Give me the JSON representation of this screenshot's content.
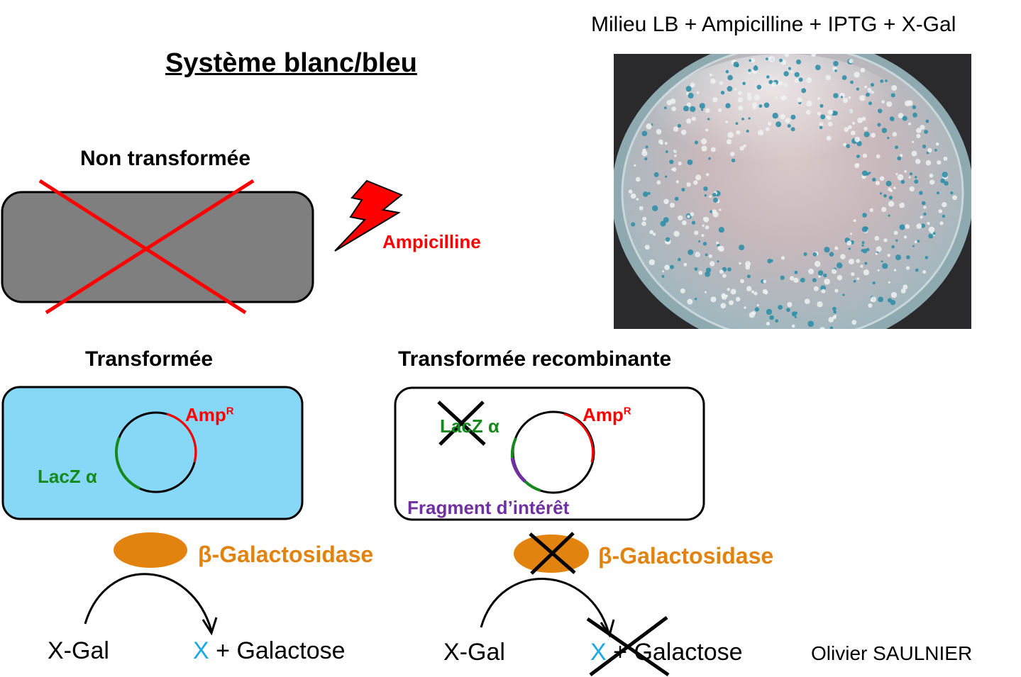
{
  "title": "Système blanc/bleu",
  "medium_label": "Milieu LB + Ampicilline + IPTG + X-Gal",
  "panels": {
    "non_transformed": {
      "heading": "Non transformée"
    },
    "antibiotic": {
      "label": "Ampicilline"
    },
    "transformed": {
      "heading": "Transformée",
      "amp_label": "Amp",
      "amp_sup": "R",
      "lacz_label": "LacZ α"
    },
    "recombinant": {
      "heading": "Transformée recombinante",
      "amp_label": "Amp",
      "amp_sup": "R",
      "lacz_label": "LacZ α",
      "fragment_label": "Fragment d’intérêt"
    }
  },
  "reactions": {
    "left": {
      "enzyme": "β-Galactosidase",
      "substrate": "X-Gal",
      "product_x": "X",
      "product_rest": "+ Galactose"
    },
    "right": {
      "enzyme": "β-Galactosidase",
      "substrate": "X-Gal",
      "product_x": "X",
      "product_rest": "+ Galactose"
    }
  },
  "author": "Olivier SAULNIER",
  "colors": {
    "non_transformed_cell": "#7f7f7f",
    "transformed_cell": "#87d8f7",
    "recombinant_cell": "#ffffff",
    "amp_resistance": "#ff0000",
    "lacz": "#16891c",
    "fragment": "#7030a0",
    "enzyme": "#e3830f",
    "x_product": "#19a8e8"
  }
}
